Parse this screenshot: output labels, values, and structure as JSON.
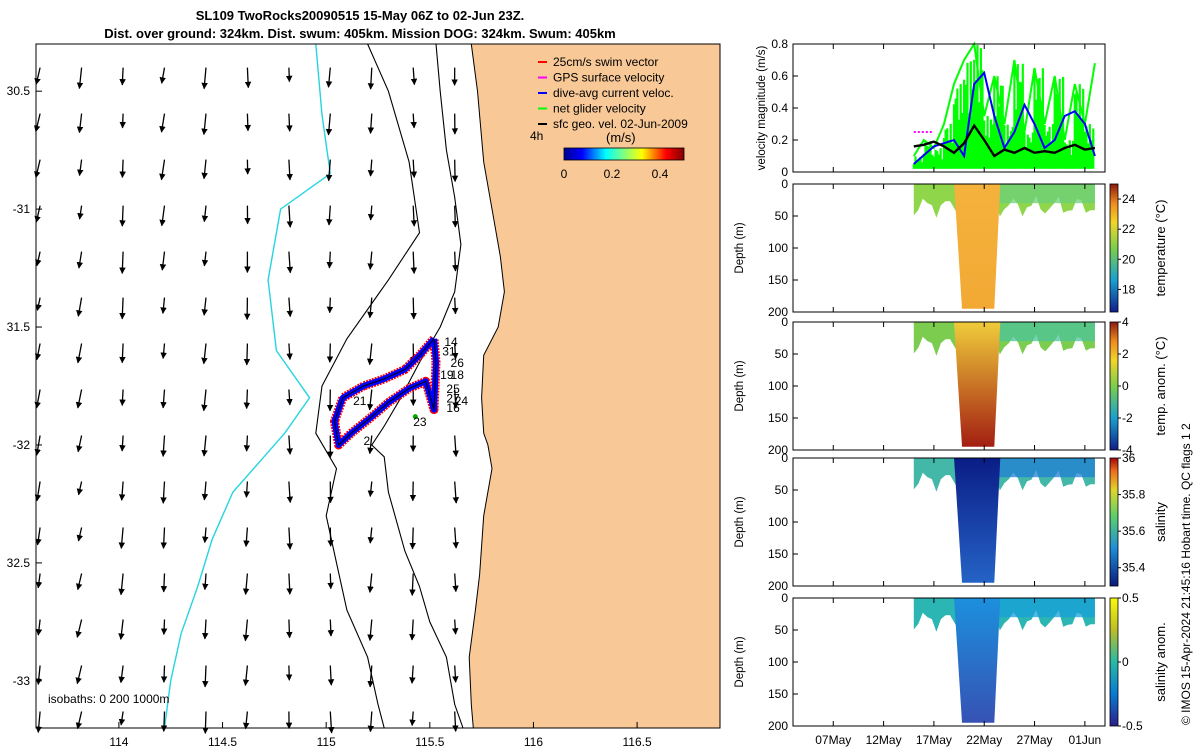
{
  "title": {
    "line1": "SL109 TwoRocks20090515 15-May 06Z to 02-Jun 23Z.",
    "line2": "Dist. over ground: 324km. Dist. swum: 405km. Mission DOG: 324km. Swum: 405km"
  },
  "credit": "© IMOS 15-Apr-2024 21:45:16 Hobart time. QC flags 1  2",
  "colors": {
    "land": "#f8c897",
    "coast": "#000000",
    "isobath200": "#000000",
    "isobath1000": "#000000",
    "shelf_line": "#26d4e0",
    "swim": "#ff0000",
    "gps": "#ff00ff",
    "dive_avg": "#0000ff",
    "net_glider": "#00ff00",
    "geo_vel": "#000000",
    "track_fill": "#0000ff",
    "dot": "#00aa00"
  },
  "chart_data": [
    {
      "type": "map",
      "xlim": [
        113.6,
        116.9
      ],
      "ylim": [
        -33.2,
        -30.3
      ],
      "x_ticks": [
        114,
        114.5,
        115,
        115.5,
        116,
        116.5
      ],
      "x_tick_labels": [
        "114",
        "114.5",
        "115",
        "115.5",
        "116",
        "116.5"
      ],
      "y_ticks": [
        -33,
        -32.5,
        -32,
        -31.5,
        -31,
        -30.5
      ],
      "y_tick_labels": [
        "-33",
        "32.5",
        "-32",
        "31.5",
        "-31",
        "30.5"
      ],
      "legend": {
        "placement": "top-right",
        "entries": [
          {
            "label": "25cm/s swim vector",
            "color": "#ff0000"
          },
          {
            "label": "GPS surface velocity",
            "color": "#ff00ff"
          },
          {
            "label": "dive-avg current veloc.",
            "color": "#0000ff"
          },
          {
            "label": "net glider velocity",
            "color": "#00ff00"
          },
          {
            "label": "sfc geo. vel. 02-Jun-2009",
            "color": "#000000"
          }
        ]
      },
      "colorbar": {
        "label": "(m/s)",
        "interval_label": "4h",
        "range": [
          0,
          0.5
        ],
        "ticks": [
          0,
          0.2,
          0.4
        ],
        "tick_labels": [
          "0",
          "0.2",
          "0.4"
        ]
      },
      "isobaths_label": "isobaths: 0   200  1000m",
      "coastline": [
        [
          115.7,
          -30.3
        ],
        [
          115.73,
          -30.5
        ],
        [
          115.76,
          -30.8
        ],
        [
          115.8,
          -31.0
        ],
        [
          115.84,
          -31.2
        ],
        [
          115.86,
          -31.35
        ],
        [
          115.83,
          -31.5
        ],
        [
          115.76,
          -31.62
        ],
        [
          115.75,
          -31.8
        ],
        [
          115.76,
          -31.95
        ],
        [
          115.78,
          -32.0
        ],
        [
          115.8,
          -32.1
        ],
        [
          115.76,
          -32.3
        ],
        [
          115.74,
          -32.55
        ],
        [
          115.72,
          -32.7
        ],
        [
          115.69,
          -32.9
        ],
        [
          115.7,
          -33.1
        ],
        [
          115.71,
          -33.2
        ]
      ],
      "isobath_200": [
        [
          115.53,
          -30.3
        ],
        [
          115.55,
          -30.5
        ],
        [
          115.58,
          -30.75
        ],
        [
          115.62,
          -30.95
        ],
        [
          115.65,
          -31.15
        ],
        [
          115.62,
          -31.35
        ],
        [
          115.55,
          -31.5
        ],
        [
          115.45,
          -31.65
        ],
        [
          115.36,
          -31.8
        ],
        [
          115.28,
          -31.92
        ],
        [
          115.22,
          -32.0
        ],
        [
          115.28,
          -32.05
        ],
        [
          115.3,
          -32.2
        ],
        [
          115.38,
          -32.45
        ],
        [
          115.45,
          -32.6
        ],
        [
          115.5,
          -32.75
        ],
        [
          115.58,
          -32.9
        ],
        [
          115.62,
          -33.1
        ],
        [
          115.66,
          -33.2
        ]
      ],
      "isobath_1000": [
        [
          115.2,
          -30.3
        ],
        [
          115.3,
          -30.5
        ],
        [
          115.4,
          -30.8
        ],
        [
          115.45,
          -31.1
        ],
        [
          115.3,
          -31.3
        ],
        [
          115.1,
          -31.55
        ],
        [
          114.98,
          -31.75
        ],
        [
          114.95,
          -31.95
        ],
        [
          115.05,
          -32.1
        ],
        [
          115.0,
          -32.3
        ],
        [
          115.05,
          -32.5
        ],
        [
          115.1,
          -32.7
        ],
        [
          115.2,
          -32.9
        ],
        [
          115.25,
          -33.1
        ],
        [
          115.28,
          -33.2
        ]
      ],
      "shelf_line": [
        [
          114.95,
          -30.3
        ],
        [
          114.98,
          -30.6
        ],
        [
          115.02,
          -30.85
        ],
        [
          114.78,
          -31.0
        ],
        [
          114.72,
          -31.3
        ],
        [
          114.76,
          -31.6
        ],
        [
          114.92,
          -31.8
        ],
        [
          114.8,
          -31.95
        ],
        [
          114.7,
          -32.05
        ],
        [
          114.55,
          -32.2
        ],
        [
          114.45,
          -32.4
        ],
        [
          114.38,
          -32.6
        ],
        [
          114.3,
          -32.8
        ],
        [
          114.25,
          -33.0
        ],
        [
          114.22,
          -33.2
        ]
      ],
      "track": [
        [
          115.52,
          -31.55
        ],
        [
          115.45,
          -31.62
        ],
        [
          115.38,
          -31.68
        ],
        [
          115.28,
          -31.72
        ],
        [
          115.18,
          -31.75
        ],
        [
          115.08,
          -31.8
        ],
        [
          115.04,
          -31.9
        ],
        [
          115.06,
          -32.0
        ],
        [
          115.12,
          -31.95
        ],
        [
          115.22,
          -31.88
        ],
        [
          115.3,
          -31.82
        ],
        [
          115.4,
          -31.76
        ],
        [
          115.48,
          -31.73
        ],
        [
          115.52,
          -31.85
        ],
        [
          115.53,
          -31.65
        ],
        [
          115.52,
          -31.55
        ]
      ],
      "track_labels": [
        {
          "label": "14",
          "lon": 115.57,
          "lat": -31.58
        },
        {
          "label": "31",
          "lon": 115.56,
          "lat": -31.62
        },
        {
          "label": "26",
          "lon": 115.6,
          "lat": -31.67
        },
        {
          "label": "18",
          "lon": 115.6,
          "lat": -31.72
        },
        {
          "label": "19",
          "lon": 115.55,
          "lat": -31.72
        },
        {
          "label": "25",
          "lon": 115.58,
          "lat": -31.78
        },
        {
          "label": "27",
          "lon": 115.58,
          "lat": -31.82
        },
        {
          "label": "24",
          "lon": 115.62,
          "lat": -31.83
        },
        {
          "label": "16",
          "lon": 115.58,
          "lat": -31.86
        },
        {
          "label": "21",
          "lon": 115.13,
          "lat": -31.83
        },
        {
          "label": "23",
          "lon": 115.42,
          "lat": -31.92
        },
        {
          "label": "2",
          "lon": 115.18,
          "lat": -32.0
        }
      ]
    },
    {
      "type": "line",
      "ylabel": "velocity magnitude (m/s)",
      "ylim": [
        0,
        0.8
      ],
      "y_ticks": [
        0,
        0.2,
        0.4,
        0.6,
        0.8
      ],
      "y_tick_labels": [
        "0",
        "0.2",
        "0.4",
        "0.6",
        "0.8"
      ],
      "x_dates": [
        "2009-05-07",
        "2009-05-12",
        "2009-05-17",
        "2009-05-22",
        "2009-05-27",
        "2009-06-01"
      ],
      "x_tick_labels": [
        "07May",
        "12May",
        "17May",
        "22May",
        "27May",
        "01Jun"
      ],
      "xlim": [
        "2009-05-03",
        "2009-06-03"
      ],
      "series": [
        {
          "color": "#00ff00",
          "x": [
            "2009-05-15",
            "2009-05-16",
            "2009-05-17",
            "2009-05-18",
            "2009-05-19",
            "2009-05-20",
            "2009-05-21",
            "2009-05-22",
            "2009-05-23",
            "2009-05-24",
            "2009-05-25",
            "2009-05-26",
            "2009-05-27",
            "2009-05-28",
            "2009-05-29",
            "2009-05-30",
            "2009-05-31",
            "2009-06-01",
            "2009-06-02"
          ],
          "y": [
            0.1,
            0.2,
            0.15,
            0.3,
            0.55,
            0.7,
            0.8,
            0.35,
            0.6,
            0.3,
            0.7,
            0.25,
            0.65,
            0.3,
            0.6,
            0.2,
            0.55,
            0.3,
            0.68
          ]
        },
        {
          "color": "#0000ff",
          "x": [
            "2009-05-15",
            "2009-05-17",
            "2009-05-19",
            "2009-05-20",
            "2009-05-21",
            "2009-05-22",
            "2009-05-23",
            "2009-05-24",
            "2009-05-25",
            "2009-05-26",
            "2009-05-27",
            "2009-05-28",
            "2009-05-29",
            "2009-05-30",
            "2009-05-31",
            "2009-06-01",
            "2009-06-02"
          ],
          "y": [
            0.05,
            0.16,
            0.2,
            0.1,
            0.55,
            0.62,
            0.35,
            0.15,
            0.25,
            0.42,
            0.3,
            0.15,
            0.2,
            0.35,
            0.38,
            0.3,
            0.1
          ]
        },
        {
          "color": "#000000",
          "x": [
            "2009-05-15",
            "2009-05-16",
            "2009-05-17",
            "2009-05-18",
            "2009-05-19",
            "2009-05-20",
            "2009-05-21",
            "2009-05-22",
            "2009-05-23",
            "2009-05-24",
            "2009-05-25",
            "2009-05-26",
            "2009-05-27",
            "2009-05-28",
            "2009-05-29",
            "2009-05-30",
            "2009-05-31",
            "2009-06-01",
            "2009-06-02"
          ],
          "y": [
            0.16,
            0.17,
            0.19,
            0.16,
            0.12,
            0.18,
            0.29,
            0.2,
            0.1,
            0.14,
            0.12,
            0.15,
            0.12,
            0.13,
            0.12,
            0.15,
            0.17,
            0.14,
            0.15
          ]
        },
        {
          "color": "#ff00ff",
          "x": [
            "2009-05-15",
            "2009-05-17"
          ],
          "y": [
            0.25,
            0.25
          ]
        }
      ]
    },
    {
      "type": "heatmap",
      "ylabel": "Depth (m)",
      "cblabel": "temperature (°C)",
      "ylim": [
        200,
        0
      ],
      "y_ticks": [
        0,
        50,
        100,
        150,
        200
      ],
      "y_tick_labels": [
        "0",
        "50",
        "100",
        "150",
        "200"
      ],
      "cb_range": [
        16.5,
        25
      ],
      "cb_ticks": [
        18,
        20,
        22,
        24
      ],
      "cb_tick_labels": [
        "18",
        "20",
        "22",
        "24"
      ],
      "values": {
        "shallow_left": 21.5,
        "deep_core": 23.5,
        "shallow_right": 21.0
      }
    },
    {
      "type": "heatmap",
      "ylabel": "Depth (m)",
      "cblabel": "temp. anom. (°C)",
      "ylim": [
        200,
        0
      ],
      "y_ticks": [
        0,
        50,
        100,
        150,
        200
      ],
      "y_tick_labels": [
        "0",
        "50",
        "100",
        "150",
        "200"
      ],
      "cb_range": [
        -4,
        4
      ],
      "cb_ticks": [
        -4,
        -2,
        0,
        2,
        4
      ],
      "cb_tick_labels": [
        "-4",
        "-2",
        "0",
        "2",
        "4"
      ],
      "values": {
        "shallow_left": 0.0,
        "deep_core_top": 1.5,
        "deep_core_bottom": 3.8,
        "shallow_right": -0.3
      }
    },
    {
      "type": "heatmap",
      "ylabel": "Depth (m)",
      "cblabel": "salinity",
      "ylim": [
        200,
        0
      ],
      "y_ticks": [
        0,
        50,
        100,
        150,
        200
      ],
      "y_tick_labels": [
        "0",
        "50",
        "100",
        "150",
        "200"
      ],
      "cb_range": [
        35.3,
        36
      ],
      "cb_ticks": [
        35.4,
        35.6,
        35.8,
        36
      ],
      "cb_tick_labels": [
        "35.4",
        "35.6",
        "35.8",
        "36"
      ],
      "values": {
        "shallow_left": 35.6,
        "deep_core": 35.32,
        "shallow_right": 35.4
      }
    },
    {
      "type": "heatmap",
      "ylabel": "Depth (m)",
      "cblabel": "salinity anom.",
      "ylim": [
        200,
        0
      ],
      "y_ticks": [
        0,
        50,
        100,
        150,
        200
      ],
      "y_tick_labels": [
        "0",
        "50",
        "100",
        "150",
        "200"
      ],
      "cb_range": [
        -0.5,
        0.5
      ],
      "cb_ticks": [
        -0.5,
        0,
        0.5
      ],
      "cb_tick_labels": [
        "-0.5",
        "0",
        "0.5"
      ],
      "values": {
        "shallow_left": 0.05,
        "deep_core": -0.2,
        "shallow_right": -0.1
      }
    }
  ]
}
